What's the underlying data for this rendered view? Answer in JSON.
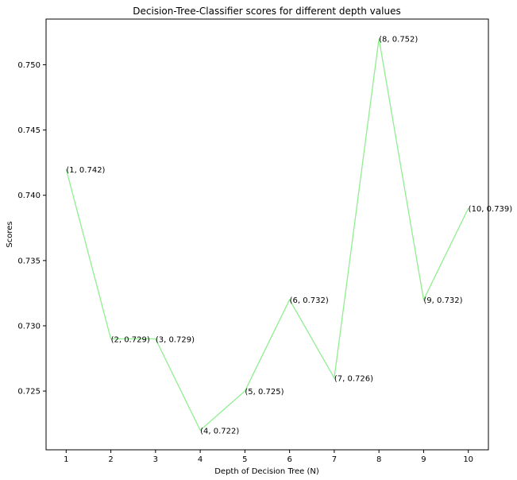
{
  "chart_data": {
    "type": "line",
    "title": "Decision-Tree-Classifier scores for different depth values",
    "xlabel": "Depth of Decision Tree (N)",
    "ylabel": "Scores",
    "x": [
      1,
      2,
      3,
      4,
      5,
      6,
      7,
      8,
      9,
      10
    ],
    "series": [
      {
        "values": [
          0.742,
          0.729,
          0.729,
          0.722,
          0.725,
          0.732,
          0.726,
          0.752,
          0.732,
          0.739
        ]
      }
    ],
    "point_labels": [
      "(1, 0.742)",
      "(2, 0.729)",
      "(3, 0.729)",
      "(4, 0.722)",
      "(5, 0.725)",
      "(6, 0.732)",
      "(7, 0.726)",
      "(8, 0.752)",
      "(9, 0.732)",
      "(10, 0.739)"
    ],
    "x_ticks": [
      "1",
      "2",
      "3",
      "4",
      "5",
      "6",
      "7",
      "8",
      "9",
      "10"
    ],
    "y_ticks": [
      "0.725",
      "0.730",
      "0.735",
      "0.740",
      "0.745",
      "0.750"
    ],
    "y_tick_values": [
      0.725,
      0.73,
      0.735,
      0.74,
      0.745,
      0.75
    ],
    "xlim": [
      0.55,
      10.45
    ],
    "ylim": [
      0.7205,
      0.7535
    ],
    "grid": false,
    "line_color": "#90ee90"
  }
}
